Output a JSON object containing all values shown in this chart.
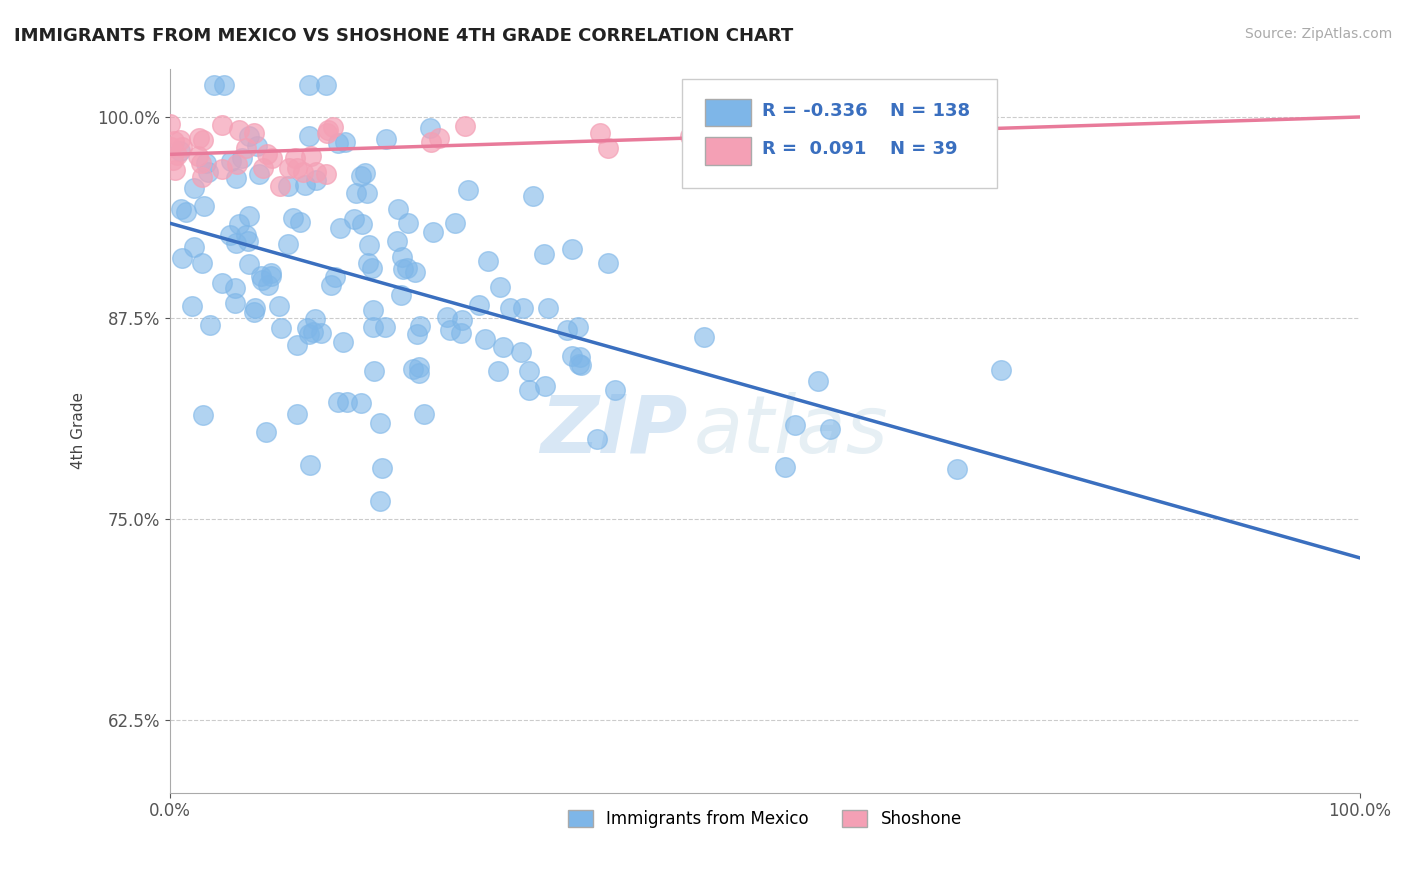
{
  "title": "IMMIGRANTS FROM MEXICO VS SHOSHONE 4TH GRADE CORRELATION CHART",
  "source": "Source: ZipAtlas.com",
  "ylabel": "4th Grade",
  "xlim": [
    0.0,
    1.0
  ],
  "ylim": [
    0.58,
    1.03
  ],
  "yticks": [
    0.625,
    0.75,
    0.875,
    1.0
  ],
  "ytick_labels": [
    "62.5%",
    "75.0%",
    "87.5%",
    "100.0%"
  ],
  "xtick_labels": [
    "0.0%",
    "100.0%"
  ],
  "blue_R": -0.336,
  "blue_N": 138,
  "pink_R": 0.091,
  "pink_N": 39,
  "blue_color": "#7eb6e8",
  "pink_color": "#f4a0b5",
  "blue_line_color": "#3a6fbf",
  "pink_line_color": "#e87a9a",
  "background_color": "#ffffff",
  "watermark_zip": "ZIP",
  "watermark_atlas": "atlas"
}
